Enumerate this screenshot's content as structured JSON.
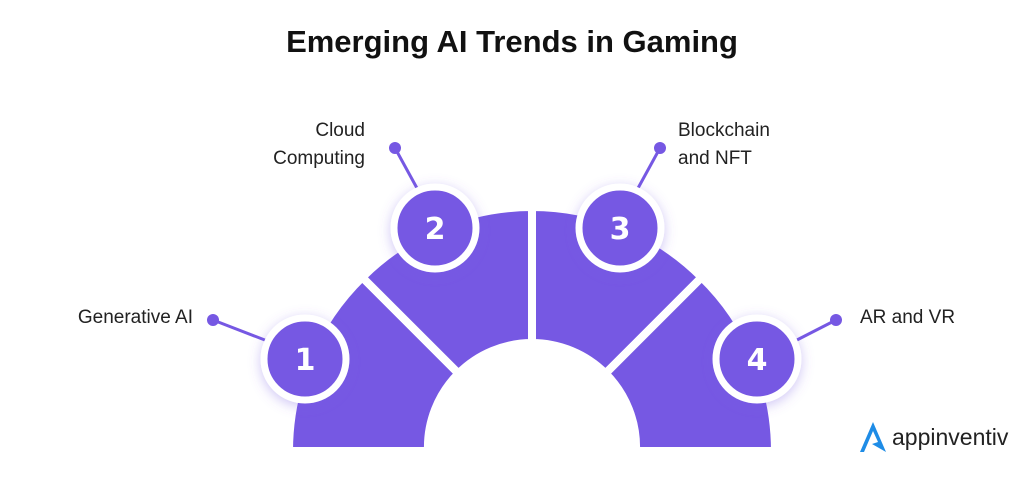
{
  "title": "Emerging AI Trends in Gaming",
  "accent_color": "#7658E3",
  "trends": [
    {
      "number": "1",
      "label_lines": [
        "Generative AI"
      ]
    },
    {
      "number": "2",
      "label_lines": [
        "Cloud",
        "Computing"
      ]
    },
    {
      "number": "3",
      "label_lines": [
        "Blockchain",
        "and NFT"
      ]
    },
    {
      "number": "4",
      "label_lines": [
        "AR and VR"
      ]
    }
  ],
  "logo": {
    "text": "appinventiv",
    "color": "#1E8CE6"
  }
}
